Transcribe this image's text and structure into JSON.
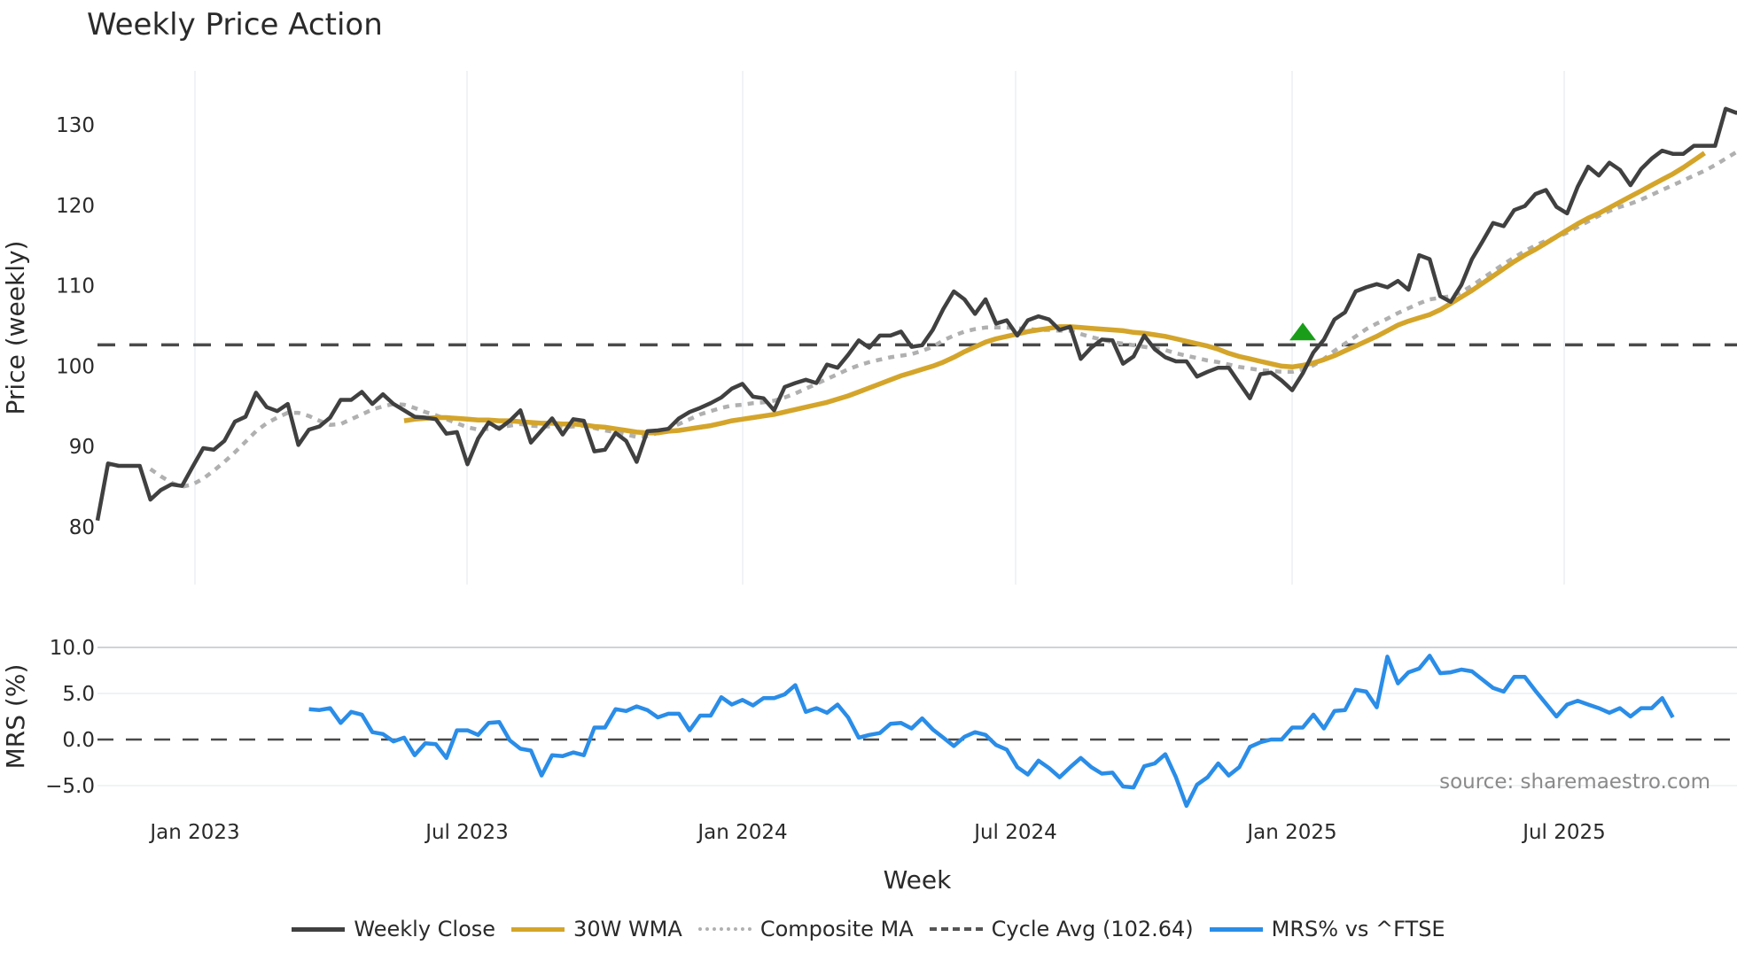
{
  "title": "Weekly Price Action",
  "price_panel": {
    "ylabel": "Price (weekly)",
    "yticks": [
      "130",
      "120",
      "110",
      "100",
      "90",
      "80"
    ],
    "cycle_avg": 102.64
  },
  "mrs_panel": {
    "ylabel": "MRS (%)",
    "yticks": [
      "10.0",
      "5.0",
      "0.0",
      "−5.0"
    ],
    "source_note": "source: sharemaestro.com"
  },
  "xaxis": {
    "title": "Week",
    "ticks": [
      "Jan 2023",
      "Jul 2023",
      "Jan 2024",
      "Jul 2024",
      "Jan 2025",
      "Jul 2025"
    ]
  },
  "legend": [
    {
      "label": "Weekly Close",
      "color": "#404040",
      "style": "solid"
    },
    {
      "label": "30W WMA",
      "color": "#d4a52a",
      "style": "solid"
    },
    {
      "label": "Composite MA",
      "color": "#b0b0b0",
      "style": "dotted"
    },
    {
      "label": "Cycle Avg (102.64)",
      "color": "#555555",
      "style": "dashed"
    },
    {
      "label": "MRS% vs ^FTSE",
      "color": "#2a8de8",
      "style": "solid"
    }
  ],
  "colors": {
    "close": "#404040",
    "wma": "#d4a52a",
    "composite": "#b0b0b0",
    "cycle": "#4a4a4a",
    "mrs": "#2a8de8",
    "signal": "#1a9e1a",
    "grid": "#eceff2"
  },
  "chart_data": {
    "type": "line",
    "title": "Weekly Price Action",
    "xlabel": "Week",
    "ylabel": "Price (weekly)",
    "ylim": [
      79,
      136
    ],
    "x_ticks": [
      "Jan 2023",
      "Jul 2023",
      "Jan 2024",
      "Jul 2024",
      "Jan 2025",
      "Jul 2025"
    ],
    "x_start": "Nov 2022",
    "x_step": "1 week",
    "series": [
      {
        "name": "Weekly Close",
        "values": [
          80.8,
          87.9,
          87.6,
          87.6,
          87.6,
          83.4,
          84.6,
          85.3,
          85.1,
          87.5,
          89.8,
          89.6,
          90.7,
          93.1,
          93.7,
          96.7,
          94.9,
          94.4,
          95.3,
          90.2,
          92.1,
          92.5,
          93.6,
          95.8,
          95.8,
          96.8,
          95.3,
          96.5,
          95.3,
          94.5,
          93.7,
          93.6,
          93.4,
          91.6,
          91.8,
          87.8,
          91.0,
          93.0,
          92.2,
          93.2,
          94.5,
          90.5,
          92.0,
          93.5,
          91.5,
          93.4,
          93.2,
          89.4,
          89.6,
          91.7,
          90.7,
          88.1,
          91.9,
          92.0,
          92.2,
          93.5,
          94.3,
          94.8,
          95.4,
          96.1,
          97.2,
          97.8,
          96.2,
          96.0,
          94.5,
          97.4,
          97.9,
          98.3,
          97.9,
          100.2,
          99.8,
          101.4,
          103.2,
          102.3,
          103.8,
          103.8,
          104.3,
          102.4,
          102.6,
          104.5,
          107.1,
          109.3,
          108.3,
          106.5,
          108.3,
          105.3,
          105.7,
          103.8,
          105.7,
          106.2,
          105.8,
          104.5,
          104.9,
          100.9,
          102.3,
          103.3,
          103.2,
          100.3,
          101.2,
          103.8,
          102.1,
          101.1,
          100.6,
          100.6,
          98.7,
          99.3,
          99.8,
          99.8,
          97.9,
          96.0,
          99.0,
          99.2,
          98.2,
          97.0,
          99.1,
          101.7,
          103.3,
          105.8,
          106.7,
          109.3,
          109.8,
          110.2,
          109.8,
          110.6,
          109.5,
          113.8,
          113.3,
          108.7,
          108.0,
          110.1,
          113.3,
          115.5,
          117.8,
          117.4,
          119.4,
          119.9,
          121.4,
          121.9,
          119.8,
          119.0,
          122.3,
          124.8,
          123.7,
          125.3,
          124.4,
          122.5,
          124.5,
          125.8,
          126.8,
          126.4,
          126.4,
          127.4,
          127.4,
          127.4,
          132.0,
          131.5,
          131.9,
          133.2
        ]
      },
      {
        "name": "30W WMA",
        "values": [
          null,
          null,
          null,
          null,
          null,
          null,
          null,
          null,
          null,
          null,
          null,
          null,
          null,
          null,
          null,
          null,
          null,
          null,
          null,
          null,
          null,
          null,
          null,
          null,
          null,
          null,
          null,
          null,
          null,
          93.2,
          93.4,
          93.5,
          93.6,
          93.6,
          93.5,
          93.4,
          93.3,
          93.3,
          93.2,
          93.2,
          93.1,
          93.0,
          92.9,
          92.9,
          92.8,
          92.8,
          92.7,
          92.5,
          92.4,
          92.2,
          92.0,
          91.8,
          91.7,
          91.7,
          91.9,
          92.0,
          92.2,
          92.4,
          92.6,
          92.9,
          93.2,
          93.4,
          93.6,
          93.8,
          94.0,
          94.3,
          94.6,
          94.9,
          95.2,
          95.5,
          95.9,
          96.3,
          96.8,
          97.3,
          97.8,
          98.3,
          98.8,
          99.2,
          99.6,
          100.0,
          100.5,
          101.1,
          101.8,
          102.4,
          103.0,
          103.4,
          103.7,
          104.0,
          104.3,
          104.5,
          104.7,
          104.9,
          104.9,
          104.8,
          104.7,
          104.6,
          104.5,
          104.4,
          104.2,
          104.1,
          103.9,
          103.7,
          103.4,
          103.1,
          102.8,
          102.5,
          102.1,
          101.6,
          101.2,
          100.9,
          100.6,
          100.3,
          100.0,
          99.9,
          100.1,
          100.4,
          100.8,
          101.3,
          101.9,
          102.5,
          103.1,
          103.7,
          104.4,
          105.1,
          105.6,
          106.0,
          106.4,
          107.0,
          107.8,
          108.6,
          109.4,
          110.3,
          111.2,
          112.1,
          113.0,
          113.8,
          114.5,
          115.3,
          116.1,
          116.9,
          117.7,
          118.4,
          119.0,
          119.7,
          120.4,
          121.1,
          121.8,
          122.5,
          123.2,
          123.9,
          124.7,
          125.6,
          126.5
        ]
      },
      {
        "name": "Composite MA",
        "values": [
          null,
          null,
          null,
          null,
          null,
          87.2,
          86.3,
          85.5,
          85.0,
          85.3,
          86.0,
          87.0,
          88.1,
          89.3,
          90.6,
          91.9,
          92.9,
          93.6,
          94.2,
          94.2,
          93.8,
          93.2,
          92.7,
          92.8,
          93.4,
          94.0,
          94.6,
          95.0,
          95.3,
          95.2,
          94.8,
          94.3,
          93.9,
          93.4,
          92.9,
          92.4,
          92.1,
          92.2,
          92.4,
          92.6,
          92.8,
          92.6,
          92.5,
          92.5,
          92.4,
          92.5,
          92.6,
          92.3,
          92.0,
          91.8,
          91.5,
          91.2,
          91.3,
          91.7,
          92.2,
          92.8,
          93.4,
          94.0,
          94.4,
          94.8,
          95.1,
          95.2,
          95.4,
          95.5,
          95.7,
          96.1,
          96.6,
          97.2,
          97.8,
          98.4,
          99.0,
          99.6,
          100.1,
          100.5,
          100.8,
          101.1,
          101.3,
          101.5,
          101.9,
          102.4,
          103.2,
          103.8,
          104.3,
          104.6,
          104.8,
          104.8,
          104.8,
          104.7,
          104.6,
          104.5,
          104.5,
          104.4,
          104.4,
          104.0,
          103.6,
          103.3,
          103.0,
          102.8,
          102.6,
          102.4,
          102.2,
          102.0,
          101.6,
          101.3,
          101.0,
          100.7,
          100.5,
          100.2,
          99.9,
          99.7,
          99.5,
          99.4,
          99.3,
          99.3,
          99.6,
          100.1,
          100.9,
          101.9,
          102.8,
          103.7,
          104.6,
          105.3,
          105.9,
          106.6,
          107.2,
          107.8,
          108.3,
          108.5,
          108.7,
          109.2,
          110.0,
          110.9,
          111.8,
          112.7,
          113.5,
          114.3,
          115.0,
          115.6,
          116.0,
          116.6,
          117.3,
          118.0,
          118.7,
          119.3,
          119.8,
          120.2,
          120.7,
          121.3,
          121.9,
          122.5,
          123.1,
          123.7,
          124.3,
          125.0,
          125.8,
          126.6,
          127.5
        ]
      },
      {
        "name": "Cycle Avg (102.64)",
        "values": "constant 102.64"
      }
    ],
    "signal_marker": {
      "type": "triangle-up",
      "x_index": 114,
      "value": 104.2,
      "color": "#1a9e1a"
    },
    "subplot": {
      "type": "line",
      "ylabel": "MRS (%)",
      "ylim": [
        -7.8,
        11
      ],
      "yticks": [
        10.0,
        5.0,
        0.0,
        -5.0
      ],
      "zero_line": "dashed",
      "annotation": "source: sharemaestro.com",
      "series": [
        {
          "name": "MRS% vs ^FTSE",
          "start_index": 20,
          "values": [
            3.3,
            3.2,
            3.4,
            1.8,
            3.0,
            2.7,
            0.8,
            0.6,
            -0.2,
            0.2,
            -1.7,
            -0.4,
            -0.5,
            -2.0,
            1.0,
            1.0,
            0.5,
            1.8,
            1.9,
            -0.1,
            -1.0,
            -1.2,
            -3.9,
            -1.7,
            -1.8,
            -1.4,
            -1.7,
            1.3,
            1.3,
            3.3,
            3.1,
            3.6,
            3.2,
            2.4,
            2.8,
            2.8,
            1.0,
            2.6,
            2.6,
            4.6,
            3.8,
            4.3,
            3.7,
            4.5,
            4.5,
            4.9,
            5.9,
            3.0,
            3.4,
            2.9,
            3.8,
            2.4,
            0.2,
            0.5,
            0.7,
            1.7,
            1.8,
            1.2,
            2.3,
            1.1,
            0.2,
            -0.7,
            0.3,
            0.8,
            0.5,
            -0.6,
            -1.1,
            -3.0,
            -3.8,
            -2.3,
            -3.1,
            -4.1,
            -3.0,
            -2.0,
            -3.0,
            -3.7,
            -3.6,
            -5.1,
            -5.2,
            -2.9,
            -2.6,
            -1.6,
            -4.1,
            -7.2,
            -4.9,
            -4.1,
            -2.6,
            -3.9,
            -3.0,
            -0.8,
            -0.3,
            0.0,
            0.0,
            1.3,
            1.3,
            2.7,
            1.2,
            3.1,
            3.2,
            5.4,
            5.2,
            3.5,
            9.0,
            6.1,
            7.3,
            7.7,
            9.1,
            7.2,
            7.3,
            7.6,
            7.4,
            6.5,
            5.6,
            5.2,
            6.8,
            6.8,
            5.3,
            3.9,
            2.5,
            3.8,
            4.2,
            3.8,
            3.4,
            2.9,
            3.4,
            2.5,
            3.4,
            3.4,
            4.5,
            2.4
          ]
        }
      ]
    }
  }
}
